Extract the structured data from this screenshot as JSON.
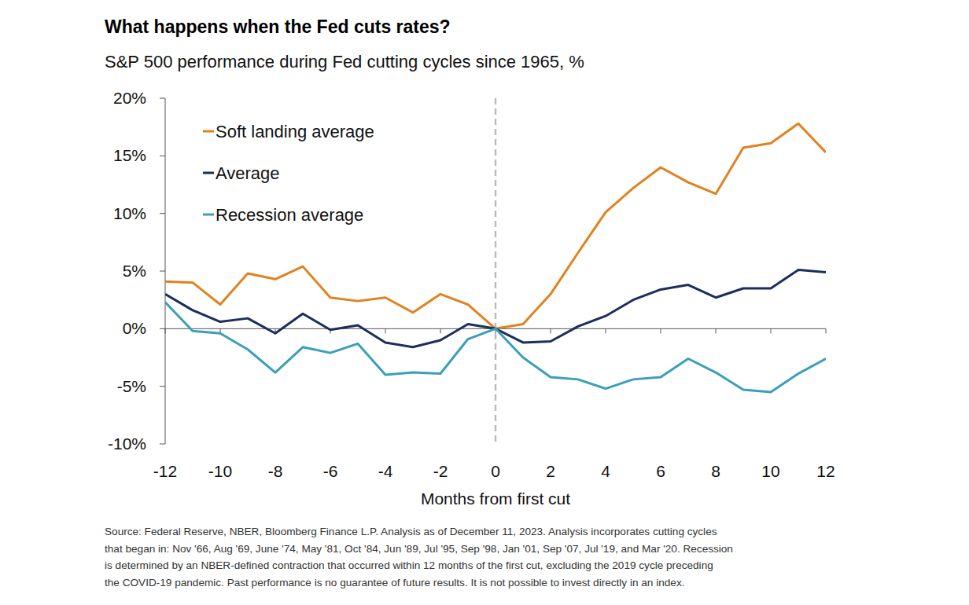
{
  "chart_data": {
    "type": "line",
    "title": "What happens when the Fed cuts rates?",
    "subtitle": "S&P 500 performance during Fed cutting cycles since 1965, %",
    "x_label": "Months from first cut",
    "x": [
      -12,
      -11,
      -10,
      -9,
      -8,
      -7,
      -6,
      -5,
      -4,
      -3,
      -2,
      -1,
      0,
      1,
      2,
      3,
      4,
      5,
      6,
      7,
      8,
      9,
      10,
      11,
      12
    ],
    "series": [
      {
        "name": "Soft landing average",
        "color": "#e0821e",
        "values": [
          4.1,
          4.0,
          2.1,
          4.8,
          4.3,
          5.4,
          2.7,
          2.4,
          2.7,
          1.4,
          3.0,
          2.1,
          0,
          0.4,
          3.0,
          6.6,
          10.1,
          12.2,
          14.0,
          12.7,
          11.7,
          15.7,
          16.1,
          17.8,
          15.3
        ]
      },
      {
        "name": "Average",
        "color": "#1b2e5c",
        "values": [
          3.0,
          1.6,
          0.6,
          0.9,
          -0.4,
          1.3,
          -0.1,
          0.3,
          -1.2,
          -1.6,
          -1.0,
          0.4,
          0,
          -1.2,
          -1.1,
          0.2,
          1.1,
          2.5,
          3.4,
          3.8,
          2.7,
          3.5,
          3.5,
          5.1,
          4.9
        ]
      },
      {
        "name": "Recession average",
        "color": "#3a9fb8",
        "values": [
          2.3,
          -0.2,
          -0.4,
          -1.8,
          -3.8,
          -1.6,
          -2.1,
          -1.3,
          -4.0,
          -3.8,
          -3.9,
          -0.9,
          0,
          -2.5,
          -4.2,
          -4.4,
          -5.2,
          -4.4,
          -4.2,
          -2.6,
          -3.8,
          -5.3,
          -5.5,
          -3.9,
          -2.6
        ]
      }
    ],
    "xlim": [
      -12,
      12
    ],
    "xticks": [
      -12,
      -10,
      -8,
      -6,
      -4,
      -2,
      0,
      2,
      4,
      6,
      8,
      10,
      12
    ],
    "ylim": [
      -10,
      20
    ],
    "yticks": [
      {
        "value": -10,
        "label": "-10%"
      },
      {
        "value": -5,
        "label": "-5%"
      },
      {
        "value": 0,
        "label": "0%"
      },
      {
        "value": 5,
        "label": "5%"
      },
      {
        "value": 10,
        "label": "10%"
      },
      {
        "value": 15,
        "label": "15%"
      },
      {
        "value": 20,
        "label": "20%"
      }
    ],
    "x_reference_line": 0,
    "legend": "upper left",
    "grid": false,
    "footnote": [
      "Source: Federal Reserve, NBER, Bloomberg Finance L.P. Analysis as of December 11, 2023. Analysis incorporates cutting cycles",
      "that began in: Nov '66, Aug '69, June '74, May '81, Oct '84, Jun '89, Jul '95, Sep '98, Jan '01, Sep '07, Jul '19, and Mar '20. Recession",
      "is determined by an NBER-defined contraction that occurred within 12 months of the first cut, excluding the 2019 cycle preceding",
      "the COVID-19 pandemic. Past performance is no guarantee of future results. It is not possible to invest directly in an index."
    ]
  }
}
